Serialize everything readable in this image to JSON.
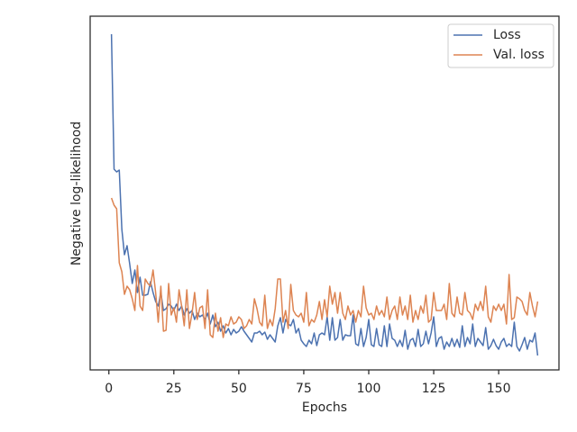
{
  "chart_data": {
    "type": "line",
    "x_label": "Epochs",
    "y_label": "Negative log-likelihood",
    "x": [
      1,
      2,
      3,
      4,
      5,
      6,
      7,
      8,
      9,
      10,
      11,
      12,
      13,
      14,
      15,
      16,
      17,
      18,
      19,
      20,
      21,
      22,
      23,
      24,
      25,
      26,
      27,
      28,
      29,
      30,
      31,
      32,
      33,
      34,
      35,
      36,
      37,
      38,
      39,
      40,
      41,
      42,
      43,
      44,
      45,
      46,
      47,
      48,
      49,
      50,
      51,
      52,
      53,
      54,
      55,
      56,
      57,
      58,
      59,
      60,
      61,
      62,
      63,
      64,
      65,
      66,
      67,
      68,
      69,
      70,
      71,
      72,
      73,
      74,
      75,
      76,
      77,
      78,
      79,
      80,
      81,
      82,
      83,
      84,
      85,
      86,
      87,
      88,
      89,
      90,
      91,
      92,
      93,
      94,
      95,
      96,
      97,
      98,
      99,
      100,
      101,
      102,
      103,
      104,
      105,
      106,
      107,
      108,
      109,
      110,
      111,
      112,
      113,
      114,
      115,
      116,
      117,
      118,
      119,
      120,
      121,
      122,
      123,
      124,
      125,
      126,
      127,
      128,
      129,
      130,
      131,
      132,
      133,
      134,
      135,
      136,
      137,
      138,
      139,
      140,
      141,
      142,
      143,
      144,
      145,
      146,
      147,
      148,
      149,
      150,
      151,
      152,
      153,
      154,
      155,
      156,
      157,
      158,
      159,
      160,
      161,
      162,
      163,
      164,
      165
    ],
    "series": [
      {
        "name": "Loss",
        "color": "#4c72b0",
        "values": [
          373,
          223,
          220,
          222,
          156,
          128,
          138,
          118,
          96,
          111,
          86,
          103,
          83,
          83,
          84,
          98,
          86,
          76,
          71,
          86,
          66,
          68,
          73,
          71,
          66,
          73,
          66,
          71,
          61,
          68,
          63,
          66,
          56,
          63,
          59,
          61,
          56,
          63,
          51,
          61,
          48,
          53,
          43,
          49,
          41,
          46,
          39,
          45,
          41,
          43,
          48,
          43,
          39,
          35,
          31,
          41,
          41,
          43,
          39,
          42,
          34,
          39,
          35,
          31,
          49,
          58,
          41,
          56,
          51,
          49,
          56,
          41,
          46,
          33,
          29,
          26,
          33,
          29,
          41,
          27,
          39,
          41,
          39,
          59,
          33,
          58,
          33,
          36,
          56,
          33,
          39,
          38,
          38,
          61,
          29,
          27,
          46,
          26,
          36,
          56,
          28,
          26,
          46,
          28,
          26,
          49,
          26,
          51,
          35,
          33,
          26,
          33,
          26,
          44,
          23,
          33,
          35,
          26,
          45,
          26,
          29,
          43,
          29,
          41,
          59,
          26,
          35,
          37,
          23,
          31,
          26,
          35,
          26,
          34,
          25,
          49,
          26,
          36,
          29,
          51,
          26,
          35,
          31,
          27,
          47,
          23,
          27,
          34,
          27,
          23,
          31,
          35,
          26,
          29,
          26,
          53,
          26,
          21,
          28,
          36,
          23,
          33,
          31,
          41,
          16
        ]
      },
      {
        "name": "Val. loss",
        "color": "#dd8452",
        "values": [
          191,
          183,
          179,
          119,
          109,
          84,
          93,
          89,
          79,
          66,
          116,
          71,
          66,
          101,
          96,
          93,
          111,
          86,
          53,
          93,
          43,
          44,
          96,
          61,
          69,
          53,
          89,
          71,
          49,
          89,
          46,
          63,
          86,
          56,
          69,
          71,
          46,
          89,
          39,
          36,
          63,
          43,
          58,
          36,
          51,
          49,
          59,
          51,
          53,
          59,
          56,
          46,
          49,
          56,
          51,
          79,
          68,
          53,
          49,
          83,
          46,
          56,
          49,
          68,
          101,
          101,
          53,
          66,
          46,
          95,
          66,
          61,
          59,
          63,
          53,
          86,
          49,
          56,
          53,
          61,
          76,
          56,
          78,
          59,
          93,
          73,
          86,
          63,
          86,
          63,
          56,
          71,
          61,
          66,
          53,
          66,
          59,
          93,
          69,
          61,
          63,
          56,
          71,
          61,
          66,
          59,
          81,
          56,
          66,
          71,
          56,
          81,
          61,
          71,
          56,
          83,
          53,
          66,
          56,
          71,
          63,
          83,
          53,
          56,
          86,
          66,
          66,
          66,
          73,
          56,
          96,
          63,
          59,
          81,
          63,
          61,
          86,
          66,
          63,
          56,
          73,
          66,
          76,
          66,
          93,
          59,
          53,
          71,
          66,
          73,
          66,
          73,
          51,
          106,
          56,
          58,
          81,
          79,
          76,
          66,
          61,
          86,
          71,
          59,
          76
        ]
      }
    ],
    "xlim": [
      -7.2,
      173.2
    ],
    "xticks": [
      0,
      25,
      50,
      75,
      100,
      125,
      150
    ],
    "ylim": [
      0,
      393
    ],
    "legend": "upper right"
  }
}
